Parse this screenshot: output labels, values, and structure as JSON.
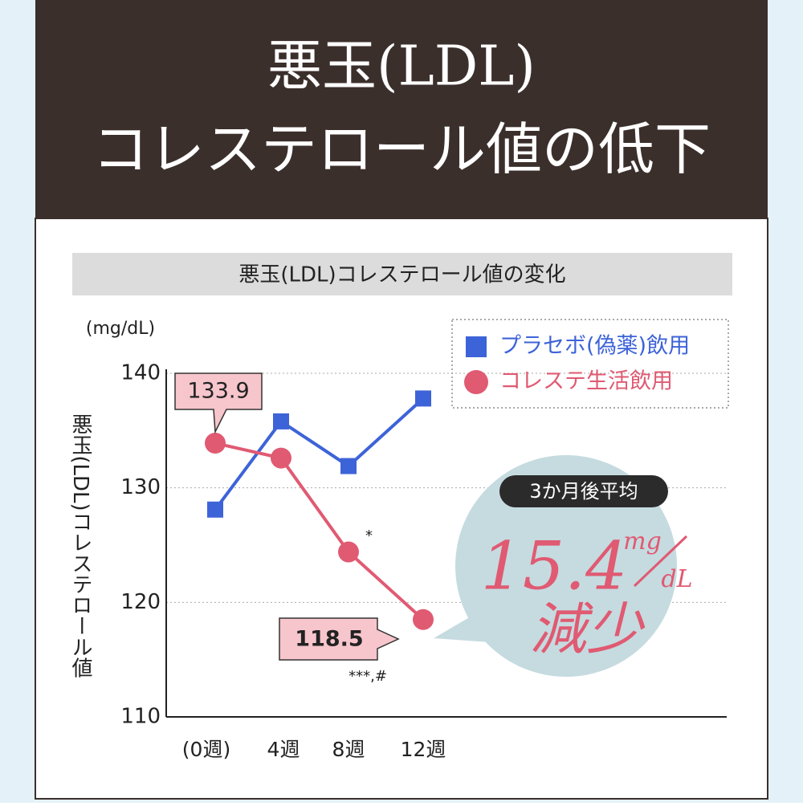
{
  "header": {
    "title_line1": "悪玉(LDL)",
    "title_line2": "コレステロール値の低下"
  },
  "chart_data": {
    "type": "line",
    "title": "悪玉(LDL)コレステロール値の変化",
    "y_label": "悪玉(LDL)コレステロール値",
    "y_unit": "(mg/dL)",
    "categories": [
      "(0週)",
      "4週",
      "8週",
      "12週"
    ],
    "series": [
      {
        "name": "プラセボ(偽薬)飲用",
        "color": "#3d63d8",
        "marker": "square",
        "values": [
          128.1,
          135.8,
          131.9,
          137.8
        ]
      },
      {
        "name": "コレステ生活飲用",
        "color": "#e05a72",
        "marker": "circle",
        "values": [
          133.9,
          132.6,
          124.4,
          118.5
        ]
      }
    ],
    "ylim": [
      110,
      140
    ],
    "yticks": [
      110,
      120,
      130,
      140
    ],
    "grid": true,
    "annotations": {
      "sig_8": "*",
      "sig_12": "***,#",
      "bubble_heading": "3か月後平均",
      "bubble_value": "15.4",
      "bubble_unit_top": "mg",
      "bubble_unit_bottom": "dL",
      "bubble_text": "減少"
    }
  }
}
